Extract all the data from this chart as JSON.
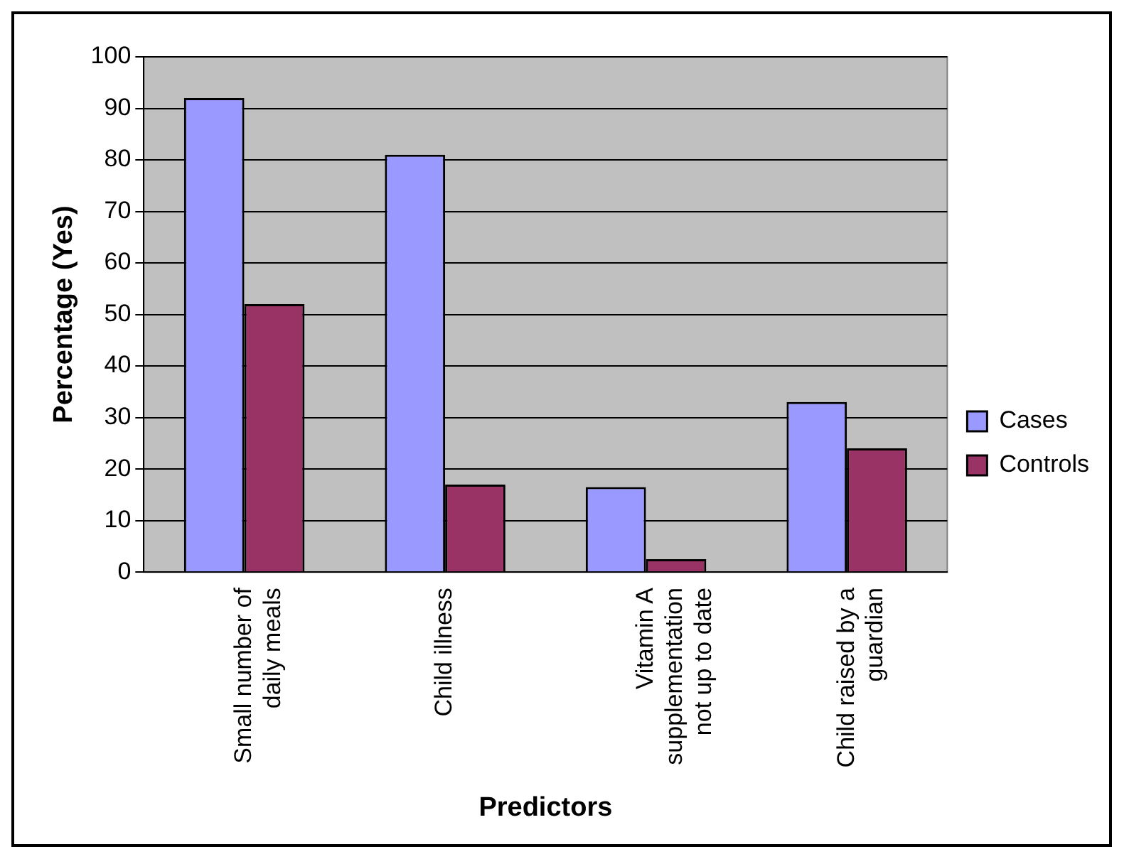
{
  "chart_data": {
    "type": "bar",
    "xlabel": "Predictors",
    "ylabel": "Percentage (Yes)",
    "categories": [
      "Small number of\ndaily meals",
      "Child illness",
      "Vitamin A\nsupplementation\nnot up to date",
      "Child raised by a\nguardian"
    ],
    "series": [
      {
        "name": "Cases",
        "color": "#9999ff",
        "values": [
          92,
          81,
          16.5,
          33
        ]
      },
      {
        "name": "Controls",
        "color": "#993366",
        "values": [
          52,
          17,
          2.5,
          24
        ]
      }
    ],
    "ylim": [
      0,
      100
    ],
    "yticks": [
      0,
      10,
      20,
      30,
      40,
      50,
      60,
      70,
      80,
      90,
      100
    ],
    "grid": "y",
    "legend": "right"
  }
}
